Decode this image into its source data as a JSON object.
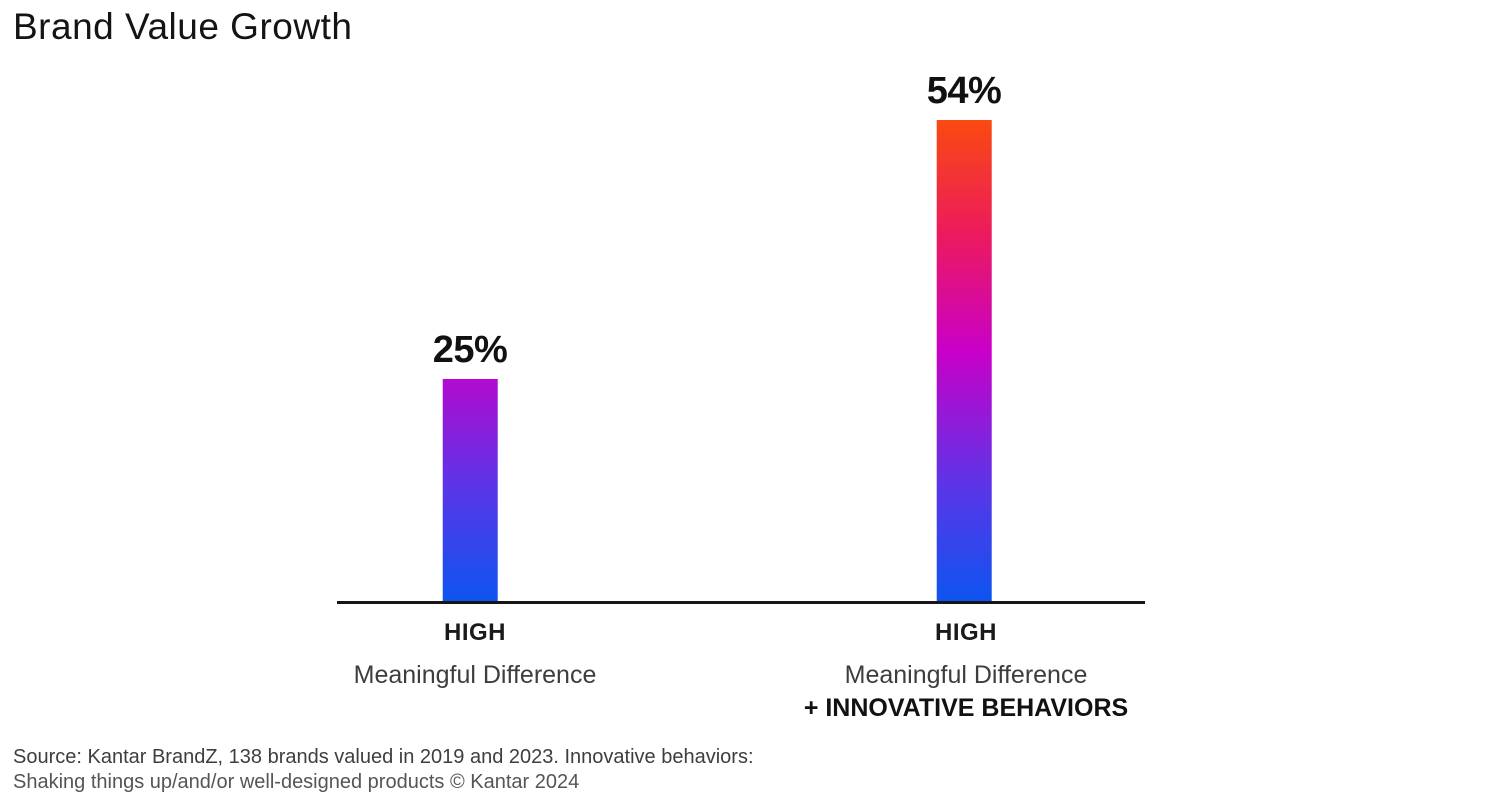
{
  "title": "Brand Value Growth",
  "chart_data": {
    "type": "bar",
    "title": "Brand Value Growth",
    "categories": [
      "HIGH Meaningful Difference",
      "HIGH Meaningful Difference + INNOVATIVE BEHAVIORS"
    ],
    "values": [
      25,
      54
    ],
    "value_labels": [
      "25%",
      "54%"
    ],
    "xlabel": "",
    "ylabel": "",
    "ylim": [
      0,
      54
    ],
    "grid": false,
    "legend": false,
    "axis_line_color": "#161616",
    "bar_gradient_stops": [
      "#fa4a10",
      "#ec1a5e",
      "#c800c8",
      "#5b35e8",
      "#0d55f0"
    ],
    "gradient_description": "single shared vertical scale: blue at baseline, magenta mid, orange at top of tallest bar"
  },
  "bars": [
    {
      "value_label": "25%",
      "line1": "HIGH",
      "line2": "Meaningful Difference"
    },
    {
      "value_label": "54%",
      "line1": "HIGH",
      "line2": "Meaningful Difference",
      "line3": "+ INNOVATIVE BEHAVIORS"
    }
  ],
  "source": {
    "line1": "Source: Kantar BrandZ, 138 brands valued in 2019 and 2023. Innovative behaviors:",
    "line2": "Shaking things up/and/or well-designed products © Kantar 2024"
  },
  "colors": {
    "title_text": "#141414",
    "value_text": "#111111",
    "category_text": "#3d3d3d",
    "source_text": "#3e3e3e",
    "gradient_top": "#fa4a10",
    "gradient_mid": "#c800c8",
    "gradient_bottom": "#0d55f0"
  }
}
